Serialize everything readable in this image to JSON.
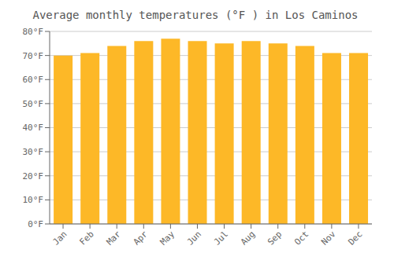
{
  "chart_data": {
    "type": "bar",
    "title": "Average monthly temperatures (°F ) in Los Caminos",
    "categories": [
      "Jan",
      "Feb",
      "Mar",
      "Apr",
      "May",
      "Jun",
      "Jul",
      "Aug",
      "Sep",
      "Oct",
      "Nov",
      "Dec"
    ],
    "values": [
      70,
      71,
      74,
      76,
      77,
      76,
      75,
      76,
      75,
      74,
      71,
      71
    ],
    "color": "#FDB827",
    "ylim": [
      0,
      80
    ],
    "yticks": [
      {
        "value": 0,
        "label": "0°F"
      },
      {
        "value": 10,
        "label": "10°F"
      },
      {
        "value": 20,
        "label": "20°F"
      },
      {
        "value": 30,
        "label": "30°F"
      },
      {
        "value": 40,
        "label": "40°F"
      },
      {
        "value": 50,
        "label": "50°F"
      },
      {
        "value": 60,
        "label": "60°F"
      },
      {
        "value": 70,
        "label": "70°F"
      },
      {
        "value": 80,
        "label": "80°F"
      }
    ],
    "grid": true
  }
}
